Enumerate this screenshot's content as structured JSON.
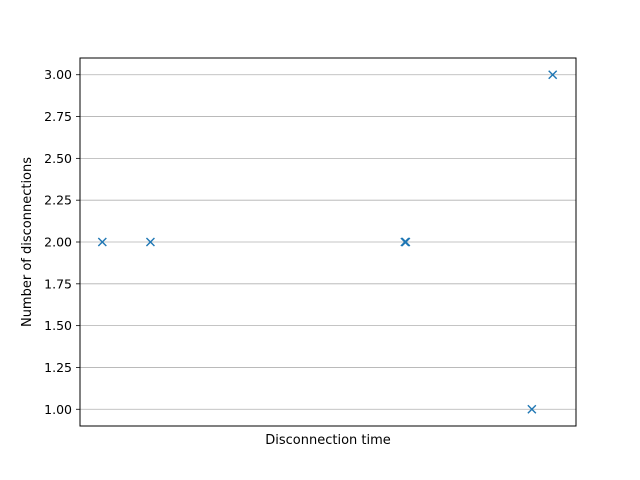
{
  "chart_data": {
    "type": "scatter",
    "title": "",
    "xlabel": "Disconnection time",
    "ylabel": "Number of disconnections",
    "x_ticks_shown": false,
    "ylim": [
      0.9,
      3.1
    ],
    "yticks": [
      "1.00",
      "1.25",
      "1.50",
      "1.75",
      "2.00",
      "2.25",
      "2.50",
      "2.75",
      "3.00"
    ],
    "grid": "y-only",
    "marker": "x",
    "color": "#1f77b4",
    "points": [
      {
        "x": 0.02,
        "y": 2
      },
      {
        "x": 0.117,
        "y": 2
      },
      {
        "x": 0.63,
        "y": 2
      },
      {
        "x": 0.632,
        "y": 2
      },
      {
        "x": 0.886,
        "y": 1
      },
      {
        "x": 0.928,
        "y": 3
      }
    ],
    "xlim": [
      -0.025,
      0.975
    ]
  }
}
